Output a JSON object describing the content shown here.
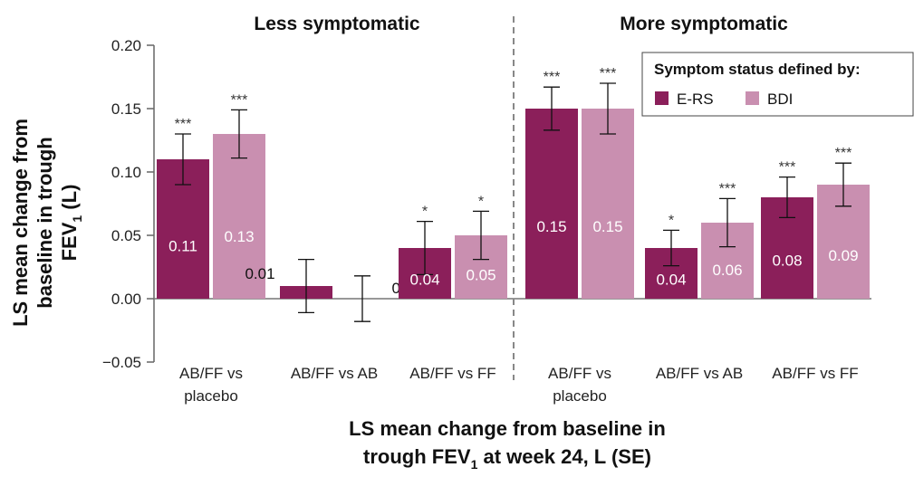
{
  "chart_data": {
    "type": "bar",
    "ylabel_line1": "LS mean change from",
    "ylabel_line2": "baseline in trough",
    "ylabel_line3_main": "FEV",
    "ylabel_line3_sub": "1",
    "ylabel_line3_end": " (L)",
    "xlabel_line1": "LS mean change from baseline in",
    "xlabel_line2_main": "trough FEV",
    "xlabel_line2_sub": "1",
    "xlabel_line2_end": " at week 24, L (SE)",
    "ylim": [
      -0.05,
      0.2
    ],
    "yticks": [
      "0.20",
      "0.15",
      "0.10",
      "0.05",
      "0.00",
      "−0.05"
    ],
    "ytick_values": [
      0.2,
      0.15,
      0.1,
      0.05,
      0.0,
      -0.05
    ],
    "legend": {
      "title": "Symptom status defined by:",
      "placement": "top-right",
      "entries": [
        {
          "name": "E-RS",
          "color": "#8b1f5a"
        },
        {
          "name": "BDI",
          "color": "#c98fb0"
        }
      ]
    },
    "panels": [
      {
        "title": "Less symptomatic",
        "groups": [
          {
            "category_line1": "AB/FF vs",
            "category_line2": "placebo",
            "bars": [
              {
                "series": "E-RS",
                "value": 0.11,
                "label": "0.11",
                "err": 0.02,
                "sig": "***"
              },
              {
                "series": "BDI",
                "value": 0.13,
                "label": "0.13",
                "err": 0.019,
                "sig": "***"
              }
            ]
          },
          {
            "category_line1": "AB/FF vs AB",
            "category_line2": "",
            "bars": [
              {
                "series": "E-RS",
                "value": 0.01,
                "label": "0.01",
                "err": 0.021,
                "sig": ""
              },
              {
                "series": "BDI",
                "value": 0.0,
                "label": "0.00",
                "err": 0.018,
                "sig": ""
              }
            ]
          },
          {
            "category_line1": "AB/FF vs FF",
            "category_line2": "",
            "bars": [
              {
                "series": "E-RS",
                "value": 0.04,
                "label": "0.04",
                "err": 0.021,
                "sig": "*"
              },
              {
                "series": "BDI",
                "value": 0.05,
                "label": "0.05",
                "err": 0.019,
                "sig": "*"
              }
            ]
          }
        ]
      },
      {
        "title": "More symptomatic",
        "groups": [
          {
            "category_line1": "AB/FF vs",
            "category_line2": "placebo",
            "bars": [
              {
                "series": "E-RS",
                "value": 0.15,
                "label": "0.15",
                "err": 0.017,
                "sig": "***"
              },
              {
                "series": "BDI",
                "value": 0.15,
                "label": "0.15",
                "err": 0.02,
                "sig": "***"
              }
            ]
          },
          {
            "category_line1": "AB/FF vs AB",
            "category_line2": "",
            "bars": [
              {
                "series": "E-RS",
                "value": 0.04,
                "label": "0.04",
                "err": 0.014,
                "sig": "*"
              },
              {
                "series": "BDI",
                "value": 0.06,
                "label": "0.06",
                "err": 0.019,
                "sig": "***"
              }
            ]
          },
          {
            "category_line1": "AB/FF vs FF",
            "category_line2": "",
            "bars": [
              {
                "series": "E-RS",
                "value": 0.08,
                "label": "0.08",
                "err": 0.016,
                "sig": "***"
              },
              {
                "series": "BDI",
                "value": 0.09,
                "label": "0.09",
                "err": 0.017,
                "sig": "***"
              }
            ]
          }
        ]
      }
    ]
  }
}
